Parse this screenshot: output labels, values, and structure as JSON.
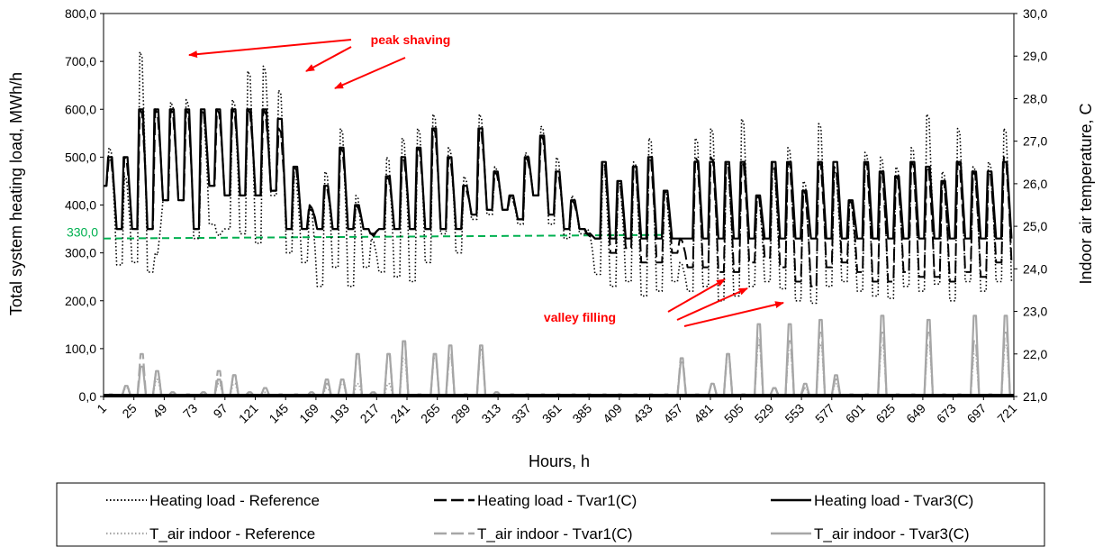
{
  "chart_data": {
    "type": "line",
    "xlabel": "Hours, h",
    "ylabel_left": "Total system heating load, MWh/h",
    "ylabel_right": "Indoor air temperature, C",
    "xlim": [
      1,
      721
    ],
    "ylim_left": [
      0,
      800
    ],
    "ylim_right": [
      21,
      30
    ],
    "x_ticks": [
      "1",
      "25",
      "49",
      "73",
      "97",
      "121",
      "145",
      "169",
      "193",
      "217",
      "241",
      "265",
      "289",
      "313",
      "337",
      "361",
      "385",
      "409",
      "433",
      "457",
      "481",
      "505",
      "529",
      "553",
      "577",
      "601",
      "625",
      "649",
      "673",
      "697",
      "721"
    ],
    "y_left_ticks": [
      "0,0",
      "100,0",
      "200,0",
      "300,0",
      "400,0",
      "500,0",
      "600,0",
      "700,0",
      "800,0"
    ],
    "y_right_ticks": [
      "21,0",
      "22,0",
      "23,0",
      "24,0",
      "25,0",
      "26,0",
      "27,0",
      "28,0",
      "29,0",
      "30,0"
    ],
    "grid": false,
    "legend_position": "bottom",
    "reference_line": {
      "value": 330,
      "label": "330,0",
      "x_end": 444
    },
    "annotations": [
      {
        "text": "peak shaving",
        "anchor": [
          456,
          44
        ],
        "arrows": [
          [
            [
              390,
              44
            ],
            [
              210,
              61
            ]
          ],
          [
            [
              390,
              52
            ],
            [
              340,
              79
            ]
          ],
          [
            [
              450,
              64
            ],
            [
              372,
              98
            ]
          ]
        ]
      },
      {
        "text": "valley filling",
        "anchor": [
          644,
          352
        ],
        "arrows": [
          [
            [
              742,
              346
            ],
            [
              805,
              310
            ]
          ],
          [
            [
              752,
              355
            ],
            [
              830,
              320
            ]
          ],
          [
            [
              760,
              362
            ],
            [
              870,
              336
            ]
          ]
        ]
      }
    ],
    "series": [
      {
        "name": "Heating load - Reference",
        "axis": "left",
        "color": "#000000",
        "dash": "1.5,2.5",
        "width": 1.6,
        "daily_peak": [
          520,
          460,
          720,
          300,
          615,
          620,
          600,
          340,
          620,
          680,
          690,
          640,
          460,
          395,
          470,
          560,
          420,
          330,
          500,
          540,
          560,
          590,
          520,
          460,
          590,
          480,
          420,
          510,
          565,
          500,
          420,
          350,
          480,
          450,
          490,
          540,
          430,
          280,
          540,
          560,
          490,
          580,
          420,
          480,
          520,
          450,
          570,
          470,
          410,
          510,
          500,
          480,
          520,
          590,
          470,
          560,
          480,
          490,
          560
        ],
        "daily_valley": [
          440,
          275,
          280,
          260,
          410,
          410,
          330,
          360,
          350,
          340,
          320,
          420,
          300,
          280,
          230,
          270,
          230,
          270,
          260,
          250,
          240,
          280,
          340,
          300,
          370,
          380,
          390,
          360,
          420,
          360,
          330,
          340,
          255,
          230,
          240,
          210,
          220,
          240,
          220,
          230,
          200,
          210,
          230,
          240,
          225,
          200,
          195,
          230,
          240,
          220,
          210,
          205,
          230,
          220,
          235,
          200,
          240,
          220,
          240
        ]
      },
      {
        "name": "Heating load - Tvar1(C)",
        "axis": "left",
        "color": "#000000",
        "dash": "14,5",
        "width": 2,
        "daily_peak": [
          500,
          500,
          600,
          600,
          600,
          600,
          600,
          600,
          600,
          600,
          600,
          560,
          480,
          400,
          440,
          520,
          400,
          340,
          460,
          500,
          520,
          560,
          500,
          440,
          560,
          470,
          420,
          500,
          545,
          470,
          410,
          340,
          490,
          450,
          480,
          500,
          430,
          330,
          500,
          500,
          490,
          490,
          420,
          490,
          490,
          430,
          490,
          480,
          410,
          490,
          470,
          460,
          490,
          480,
          450,
          490,
          470,
          470,
          500
        ],
        "daily_valley": [
          440,
          350,
          350,
          350,
          410,
          410,
          350,
          440,
          420,
          420,
          420,
          430,
          350,
          350,
          350,
          350,
          350,
          350,
          350,
          350,
          350,
          350,
          350,
          350,
          380,
          390,
          390,
          370,
          420,
          380,
          350,
          350,
          330,
          300,
          310,
          280,
          280,
          300,
          270,
          270,
          260,
          260,
          280,
          290,
          270,
          240,
          230,
          270,
          280,
          260,
          240,
          240,
          260,
          250,
          250,
          240,
          260,
          250,
          280
        ]
      },
      {
        "name": "Heating load - Tvar3(C)",
        "axis": "left",
        "color": "#000000",
        "dash": "",
        "width": 2.2,
        "daily_peak": [
          500,
          500,
          600,
          600,
          600,
          600,
          600,
          600,
          600,
          600,
          600,
          580,
          480,
          390,
          440,
          520,
          400,
          340,
          460,
          500,
          520,
          560,
          500,
          440,
          560,
          470,
          420,
          500,
          545,
          470,
          410,
          340,
          490,
          450,
          480,
          500,
          430,
          330,
          490,
          490,
          490,
          490,
          420,
          490,
          490,
          430,
          490,
          490,
          410,
          490,
          470,
          460,
          490,
          480,
          450,
          490,
          470,
          470,
          490
        ],
        "daily_valley": [
          440,
          350,
          350,
          350,
          410,
          410,
          350,
          440,
          420,
          420,
          420,
          430,
          350,
          350,
          350,
          350,
          350,
          350,
          350,
          350,
          350,
          350,
          350,
          350,
          380,
          390,
          390,
          370,
          420,
          380,
          350,
          350,
          330,
          330,
          330,
          330,
          330,
          330,
          330,
          330,
          330,
          330,
          330,
          330,
          330,
          330,
          330,
          330,
          330,
          330,
          330,
          330,
          330,
          330,
          330,
          330,
          330,
          330,
          330
        ]
      },
      {
        "name": "T_air indoor - Reference",
        "axis": "right",
        "color": "#a6a6a6",
        "dash": "1.5,2.5",
        "width": 1.8,
        "daily_peak": [
          21.05,
          21.2,
          21.7,
          21.4,
          21.1,
          21.05,
          21.1,
          21.3,
          21.3,
          21.1,
          21.1,
          21.05,
          21.05,
          21.1,
          21.2,
          21.3,
          21.3,
          21.05,
          21.3,
          21.9,
          21.05,
          21.9,
          21.9,
          21.05,
          22.0,
          21.1,
          21.05,
          21.05,
          21.05,
          21.05,
          21.05,
          21.05,
          21.05,
          21.05,
          21.05,
          21.05,
          21.05,
          21.9,
          21.05,
          21.3,
          21.9,
          21.05,
          22.2,
          21.2,
          22.1,
          21.2,
          22.2,
          21.3,
          21.05,
          21.05,
          22.2,
          21.05,
          21.05,
          22.2,
          21.05,
          21.05,
          22.0,
          21.05,
          22.2
        ],
        "daily_valley": [
          21.02,
          21.02,
          21.02,
          21.02,
          21.02,
          21.02,
          21.02,
          21.02,
          21.02,
          21.02,
          21.02,
          21.02,
          21.02,
          21.02,
          21.02,
          21.02,
          21.02,
          21.02,
          21.02,
          21.02,
          21.02,
          21.02,
          21.02,
          21.02,
          21.02,
          21.02,
          21.02,
          21.02,
          21.02,
          21.02,
          21.02,
          21.02,
          21.02,
          21.02,
          21.02,
          21.02,
          21.02,
          21.02,
          21.02,
          21.02,
          21.02,
          21.02,
          21.02,
          21.02,
          21.02,
          21.02,
          21.02,
          21.02,
          21.02,
          21.02,
          21.02,
          21.02,
          21.02,
          21.02,
          21.02,
          21.02,
          21.02,
          21.02,
          21.02
        ]
      },
      {
        "name": "T_air indoor - Tvar1(C)",
        "axis": "right",
        "color": "#a6a6a6",
        "dash": "14,5",
        "width": 2.2,
        "daily_peak": [
          21.05,
          21.25,
          22.0,
          21.6,
          21.1,
          21.05,
          21.1,
          21.6,
          21.5,
          21.1,
          21.2,
          21.05,
          21.05,
          21.1,
          21.3,
          21.4,
          22.0,
          21.1,
          22.0,
          22.3,
          21.05,
          22.0,
          22.0,
          21.05,
          22.1,
          21.1,
          21.05,
          21.05,
          21.05,
          21.05,
          21.05,
          21.05,
          21.05,
          21.05,
          21.05,
          21.05,
          21.05,
          21.9,
          21.05,
          21.3,
          22.0,
          21.05,
          22.4,
          21.2,
          22.3,
          21.2,
          22.5,
          21.4,
          21.05,
          21.05,
          22.5,
          21.05,
          21.05,
          22.5,
          21.05,
          21.05,
          22.3,
          21.05,
          22.5
        ],
        "daily_valley": [
          21.02,
          21.02,
          21.02,
          21.02,
          21.02,
          21.02,
          21.02,
          21.02,
          21.02,
          21.02,
          21.02,
          21.02,
          21.02,
          21.02,
          21.02,
          21.02,
          21.02,
          21.02,
          21.02,
          21.02,
          21.02,
          21.02,
          21.02,
          21.02,
          21.02,
          21.02,
          21.02,
          21.02,
          21.02,
          21.02,
          21.02,
          21.02,
          21.02,
          21.02,
          21.02,
          21.02,
          21.02,
          21.02,
          21.02,
          21.02,
          21.02,
          21.02,
          21.02,
          21.02,
          21.02,
          21.02,
          21.02,
          21.02,
          21.02,
          21.02,
          21.02,
          21.02,
          21.02,
          21.02,
          21.02,
          21.02,
          21.02,
          21.02,
          21.02
        ]
      },
      {
        "name": "T_air indoor - Tvar3(C)",
        "axis": "right",
        "color": "#a6a6a6",
        "dash": "",
        "width": 2.2,
        "daily_peak": [
          21.05,
          21.25,
          21.7,
          21.6,
          21.1,
          21.05,
          21.1,
          21.4,
          21.5,
          21.1,
          21.2,
          21.05,
          21.05,
          21.1,
          21.4,
          21.4,
          22.0,
          21.1,
          22.0,
          22.3,
          21.05,
          22.0,
          22.2,
          21.05,
          22.2,
          21.1,
          21.05,
          21.05,
          21.05,
          21.05,
          21.05,
          21.05,
          21.05,
          21.05,
          21.05,
          21.05,
          21.05,
          21.8,
          21.05,
          21.3,
          22.0,
          21.05,
          22.7,
          21.2,
          22.7,
          21.3,
          22.8,
          21.5,
          21.05,
          21.05,
          22.9,
          21.05,
          21.05,
          22.8,
          21.05,
          21.05,
          22.9,
          21.05,
          22.9
        ],
        "daily_valley": [
          21.02,
          21.02,
          21.02,
          21.02,
          21.02,
          21.02,
          21.02,
          21.02,
          21.02,
          21.02,
          21.02,
          21.02,
          21.02,
          21.02,
          21.02,
          21.02,
          21.02,
          21.02,
          21.02,
          21.02,
          21.02,
          21.02,
          21.02,
          21.02,
          21.02,
          21.02,
          21.02,
          21.02,
          21.02,
          21.02,
          21.02,
          21.02,
          21.02,
          21.02,
          21.02,
          21.02,
          21.02,
          21.02,
          21.02,
          21.02,
          21.02,
          21.02,
          21.02,
          21.02,
          21.02,
          21.02,
          21.02,
          21.02,
          21.02,
          21.02,
          21.02,
          21.02,
          21.02,
          21.02,
          21.02,
          21.02,
          21.02,
          21.02,
          21.02
        ]
      }
    ]
  }
}
